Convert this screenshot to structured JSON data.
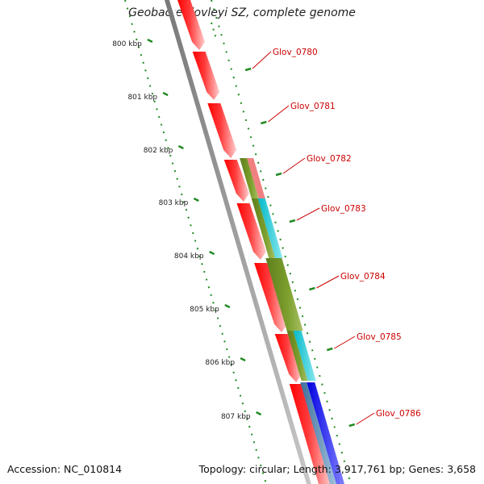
{
  "title": "Geobacter lovleyi SZ, complete genome",
  "footer": {
    "accession": "Accession: NC_010814",
    "summary": "Topology: circular; Length: 3,917,761 bp; Genes: 3,658"
  },
  "ruler_labels": [
    "800 kbp",
    "801 kbp",
    "802 kbp",
    "803 kbp",
    "804 kbp",
    "805 kbp",
    "806 kbp",
    "807 kbp"
  ],
  "gene_labels": [
    "Glov_0780",
    "Glov_0781",
    "Glov_0782",
    "Glov_0783",
    "Glov_0784",
    "Glov_0785",
    "Glov_0786"
  ],
  "colors": {
    "backbone": "#888888",
    "cds": "#ff0000",
    "label": "#cc0000",
    "tick": "#228b22",
    "olive": "#6b8e23",
    "cyan": "#00c8d4",
    "pink": "#f08080",
    "blue": "#0000ff",
    "steelblue": "#4682b4"
  }
}
